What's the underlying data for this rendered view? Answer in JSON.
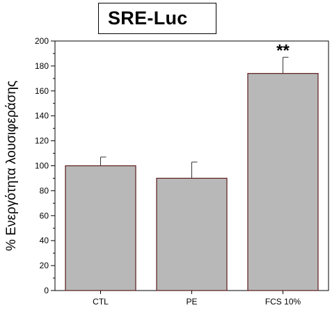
{
  "chart_data": {
    "type": "bar",
    "title": "SRE-Luc",
    "ylabel": "% Ενεργότητα λουσιφεράσης",
    "xlabel": "",
    "categories": [
      "CTL",
      "PE",
      "FCS 10%"
    ],
    "values": [
      100,
      90,
      174
    ],
    "errors": [
      7,
      13,
      13
    ],
    "ylim": [
      0,
      200
    ],
    "yticks": [
      0,
      20,
      40,
      60,
      80,
      100,
      120,
      140,
      160,
      180,
      200
    ],
    "annotations": [
      {
        "category": "FCS 10%",
        "text": "**"
      }
    ],
    "grid": false,
    "legend": "none",
    "colors": {
      "bar_fill": "#b8b8b8",
      "bar_edge": "#5a1a1a",
      "axis": "#000000"
    }
  }
}
